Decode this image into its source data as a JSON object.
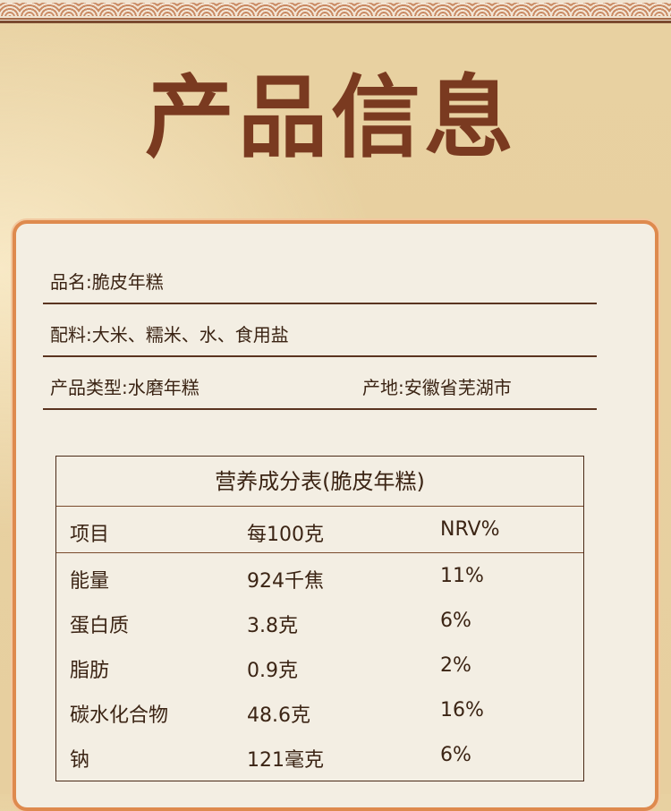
{
  "title": "产品信息",
  "info": {
    "name": "品名:脆皮年糕",
    "ingredients": "配料:大米、糯米、水、食用盐",
    "type": "产品类型:水磨年糕",
    "origin": "产地:安徽省芜湖市"
  },
  "nutrition": {
    "title": "营养成分表(脆皮年糕)",
    "headers": [
      "项目",
      "每100克",
      "NRV%"
    ],
    "rows": [
      [
        "能量",
        "924千焦",
        "11%"
      ],
      [
        "蛋白质",
        "3.8克",
        "6%"
      ],
      [
        "脂肪",
        "0.9克",
        "2%"
      ],
      [
        "碳水化合物",
        "48.6克",
        "16%"
      ],
      [
        "钠",
        "121毫克",
        "6%"
      ]
    ]
  },
  "colors": {
    "title": "#7a3a20",
    "card_border": "#de8a4e",
    "card_bg": "#f3eee3"
  }
}
